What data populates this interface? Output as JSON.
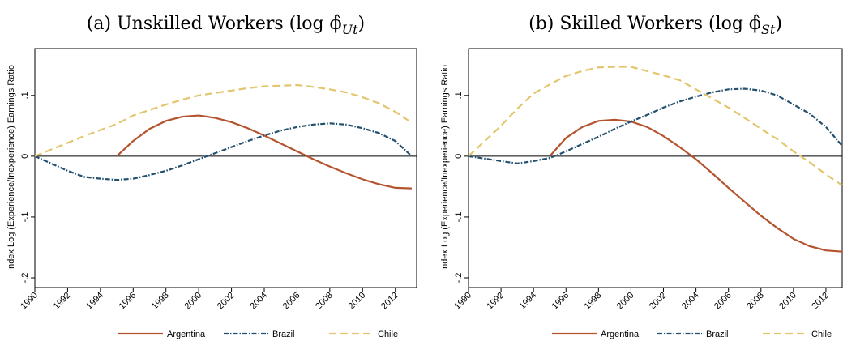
{
  "chart_data": [
    {
      "type": "line",
      "title": {
        "text": "(a) Unskilled Workers (log ϕ̂",
        "subscript": "Ut",
        "closing": ")"
      },
      "y_label": "Index Log (Experience/Inexperience) Earnings Ratio",
      "x": [
        1990,
        1991,
        1992,
        1993,
        1994,
        1995,
        1996,
        1997,
        1998,
        1999,
        2000,
        2001,
        2002,
        2003,
        2004,
        2005,
        2006,
        2007,
        2008,
        2009,
        2010,
        2011,
        2012,
        2013
      ],
      "xlim": [
        1990,
        2013.3
      ],
      "xticks": [
        1990,
        1992,
        1994,
        1996,
        1998,
        2000,
        2002,
        2004,
        2006,
        2008,
        2010,
        2012
      ],
      "ylim": [
        -0.216,
        0.177
      ],
      "yticks": [
        {
          "value": -0.2,
          "label": "-.2"
        },
        {
          "value": -0.1,
          "label": "-.1"
        },
        0,
        {
          "value": 0.1,
          "label": ".1"
        }
      ],
      "series": [
        {
          "name": "Argentina",
          "color": "#b5532e",
          "style": "solid",
          "values": [
            null,
            null,
            null,
            null,
            null,
            0,
            0.025,
            0.045,
            0.058,
            0.065,
            0.067,
            0.063,
            0.056,
            0.046,
            0.034,
            0.021,
            0.008,
            -0.005,
            -0.017,
            -0.028,
            -0.038,
            -0.046,
            -0.052,
            -0.053
          ]
        },
        {
          "name": "Brazil",
          "color": "#24506f",
          "style": "dashdot",
          "values": [
            0,
            -0.012,
            -0.024,
            -0.034,
            -0.037,
            -0.039,
            -0.037,
            -0.031,
            -0.024,
            -0.015,
            -0.005,
            0.005,
            0.015,
            0.025,
            0.034,
            0.042,
            0.048,
            0.052,
            0.054,
            0.052,
            0.046,
            0.038,
            0.025,
            0
          ]
        },
        {
          "name": "Chile",
          "color": "#e2c56c",
          "style": "dash",
          "values": [
            0,
            0.011,
            0.022,
            0.033,
            0.043,
            0.053,
            0.067,
            0.076,
            0.085,
            0.093,
            0.1,
            0.104,
            0.108,
            0.112,
            0.115,
            0.116,
            0.117,
            0.114,
            0.11,
            0.105,
            0.097,
            0.087,
            0.073,
            0.055
          ]
        }
      ]
    },
    {
      "type": "line",
      "title": {
        "text": "(b) Skilled Workers (log ϕ̂",
        "subscript": "St",
        "closing": ")"
      },
      "y_label": "Index Log (Experience/Inexperience) Earnings Ratio",
      "x": [
        1990,
        1991,
        1992,
        1993,
        1994,
        1995,
        1996,
        1997,
        1998,
        1999,
        2000,
        2001,
        2002,
        2003,
        2004,
        2005,
        2006,
        2007,
        2008,
        2009,
        2010,
        2011,
        2012,
        2013
      ],
      "xlim": [
        1990,
        2013
      ],
      "xticks": [
        1990,
        1992,
        1994,
        1996,
        1998,
        2000,
        2002,
        2004,
        2006,
        2008,
        2010,
        2012
      ],
      "ylim": [
        -0.216,
        0.177
      ],
      "yticks": [
        {
          "value": -0.2,
          "label": "-.2"
        },
        {
          "value": -0.1,
          "label": "-.1"
        },
        0,
        {
          "value": 0.1,
          "label": ".1"
        }
      ],
      "series": [
        {
          "name": "Argentina",
          "color": "#b5532e",
          "style": "solid",
          "values": [
            null,
            null,
            null,
            null,
            null,
            0,
            0.03,
            0.048,
            0.058,
            0.06,
            0.057,
            0.048,
            0.033,
            0.015,
            -0.005,
            -0.028,
            -0.052,
            -0.075,
            -0.098,
            -0.118,
            -0.136,
            -0.148,
            -0.155,
            -0.157
          ]
        },
        {
          "name": "Brazil",
          "color": "#24506f",
          "style": "dashdot",
          "values": [
            0,
            -0.004,
            -0.008,
            -0.012,
            -0.008,
            -0.003,
            0.008,
            0.02,
            0.032,
            0.045,
            0.057,
            0.068,
            0.08,
            0.09,
            0.098,
            0.105,
            0.11,
            0.111,
            0.108,
            0.1,
            0.085,
            0.07,
            0.048,
            0.017
          ]
        },
        {
          "name": "Chile",
          "color": "#e2c56c",
          "style": "dash",
          "values": [
            0,
            0.025,
            0.05,
            0.078,
            0.103,
            0.118,
            0.132,
            0.14,
            0.146,
            0.147,
            0.147,
            0.14,
            0.133,
            0.125,
            0.11,
            0.095,
            0.08,
            0.063,
            0.045,
            0.028,
            0.008,
            -0.01,
            -0.03,
            -0.048
          ]
        }
      ]
    }
  ]
}
